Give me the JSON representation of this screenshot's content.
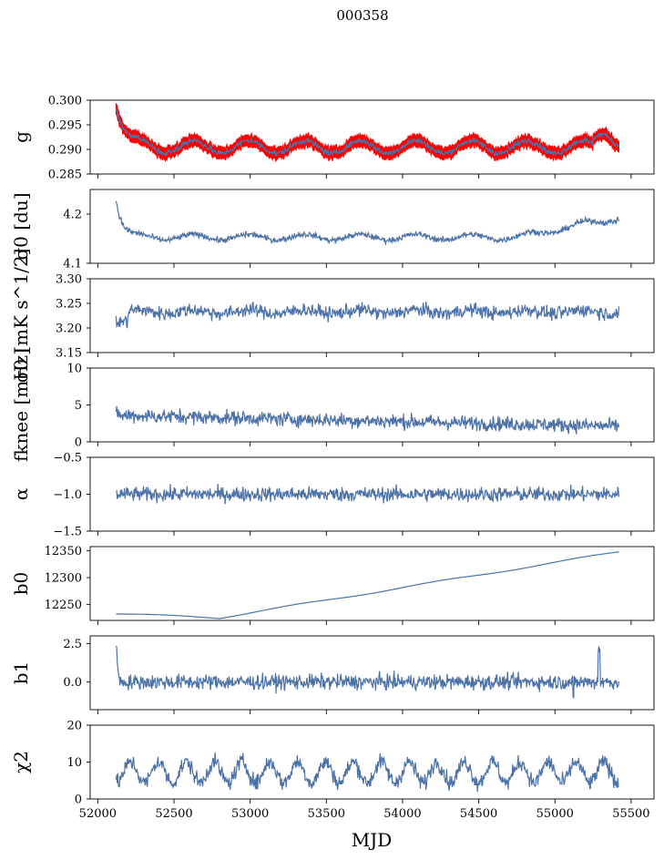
{
  "figure": {
    "title": "000358",
    "xlabel": "MJD"
  },
  "colors": {
    "series": "#4c72a8",
    "band": "#ff0000",
    "axes": "#000000"
  },
  "chart_data": [
    {
      "type": "line",
      "ylabel": "g",
      "ylim": [
        0.285,
        0.3
      ],
      "yticks": [
        "0.285",
        "0.290",
        "0.295",
        "0.300"
      ],
      "ytick_values": [
        0.285,
        0.29,
        0.295,
        0.3
      ],
      "has_band": true,
      "series": [
        {
          "shape": "g"
        }
      ]
    },
    {
      "type": "line",
      "ylabel": "σ0 [du]",
      "ylim": [
        4.1,
        4.25
      ],
      "yticks": [
        "4.1",
        "4.2"
      ],
      "ytick_values": [
        4.1,
        4.2
      ],
      "series": [
        {
          "shape": "sigma_du"
        }
      ]
    },
    {
      "type": "line",
      "ylabel": "σ0 [mK s^1/2]",
      "ylim": [
        3.15,
        3.3
      ],
      "yticks": [
        "3.15",
        "3.20",
        "3.25",
        "3.30"
      ],
      "ytick_values": [
        3.15,
        3.2,
        3.25,
        3.3
      ],
      "series": [
        {
          "shape": "sigma_mk"
        }
      ]
    },
    {
      "type": "line",
      "ylabel": "fknee [mHz]",
      "ylim": [
        0,
        10
      ],
      "yticks": [
        "0",
        "5",
        "10"
      ],
      "ytick_values": [
        0,
        5,
        10
      ],
      "series": [
        {
          "shape": "fknee"
        }
      ]
    },
    {
      "type": "line",
      "ylabel": "α",
      "ylim": [
        -1.5,
        -0.5
      ],
      "yticks": [
        "−1.5",
        "−1.0",
        "−0.5"
      ],
      "ytick_values": [
        -1.5,
        -1.0,
        -0.5
      ],
      "series": [
        {
          "shape": "alpha"
        }
      ]
    },
    {
      "type": "line",
      "ylabel": "b0",
      "ylim": [
        12220,
        12358
      ],
      "yticks": [
        "12250",
        "12300",
        "12350"
      ],
      "ytick_values": [
        12250,
        12300,
        12350
      ],
      "series": [
        {
          "shape": "b0"
        }
      ]
    },
    {
      "type": "line",
      "ylabel": "b1",
      "ylim": [
        -1.8,
        3.0
      ],
      "yticks": [
        "0.0",
        "2.5"
      ],
      "ytick_values": [
        0.0,
        2.5
      ],
      "series": [
        {
          "shape": "b1"
        }
      ]
    },
    {
      "type": "line",
      "ylabel": "χ2",
      "ylim": [
        0,
        20
      ],
      "yticks": [
        "0",
        "10",
        "20"
      ],
      "ytick_values": [
        0,
        10,
        20
      ],
      "series": [
        {
          "shape": "chi2"
        }
      ]
    }
  ],
  "x_axis": {
    "xlim": [
      51950,
      55650
    ],
    "data_range": [
      52120,
      55420
    ],
    "xticks": [
      "52000",
      "52500",
      "53000",
      "53500",
      "54000",
      "54500",
      "55000",
      "55500"
    ],
    "xtick_values": [
      52000,
      52500,
      53000,
      53500,
      54000,
      54500,
      55000,
      55500
    ]
  }
}
